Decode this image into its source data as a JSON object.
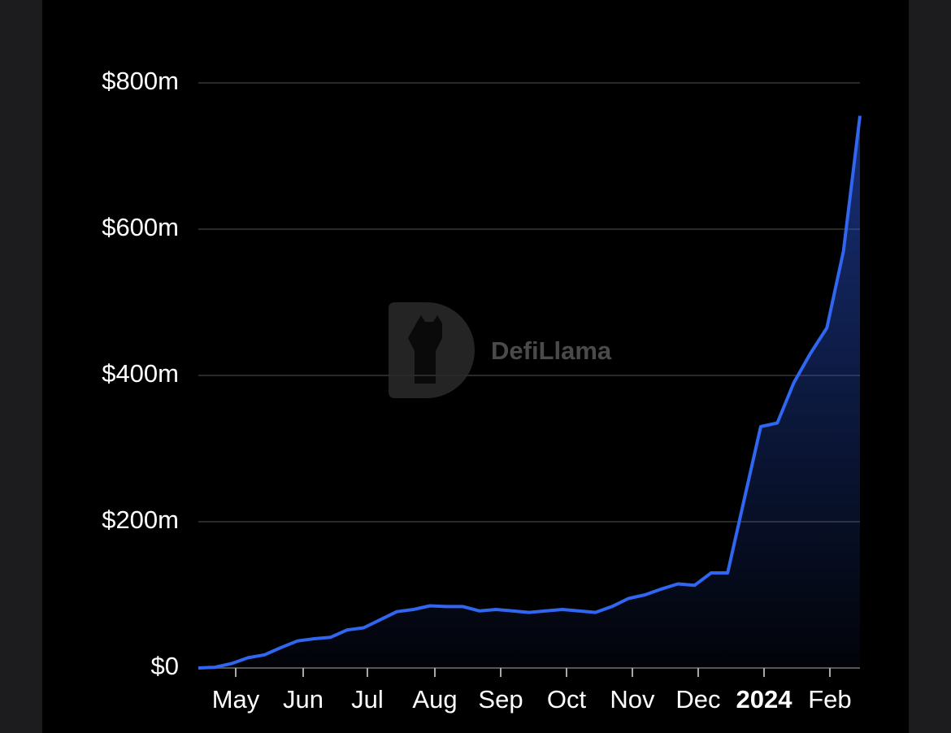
{
  "chart_data": {
    "type": "line",
    "watermark": "DefiLlama",
    "values": [
      0,
      1,
      6,
      14,
      18,
      28,
      37,
      40,
      42,
      52,
      55,
      66,
      77,
      80,
      85,
      84,
      84,
      78,
      80,
      78,
      76,
      78,
      80,
      78,
      76,
      84,
      95,
      100,
      108,
      115,
      113,
      130,
      130,
      230,
      330,
      335,
      390,
      430,
      465,
      570,
      755
    ],
    "color": "#3166f0",
    "xlim": [
      0,
      40
    ],
    "xticks": [
      {
        "value": 2.26,
        "label": "May"
      },
      {
        "value": 6.34,
        "label": "Jun"
      },
      {
        "value": 10.22,
        "label": "Jul"
      },
      {
        "value": 14.3,
        "label": "Aug"
      },
      {
        "value": 18.28,
        "label": "Sep"
      },
      {
        "value": 22.26,
        "label": "Oct"
      },
      {
        "value": 26.24,
        "label": "Nov"
      },
      {
        "value": 30.22,
        "label": "Dec"
      },
      {
        "value": 34.2,
        "label": "2024",
        "bold": true
      },
      {
        "value": 38.18,
        "label": "Feb"
      }
    ],
    "ylim": [
      0,
      800
    ],
    "yticks": [
      {
        "value": 0,
        "label": "$0"
      },
      {
        "value": 200,
        "label": "$200m"
      },
      {
        "value": 400,
        "label": "$400m"
      },
      {
        "value": 600,
        "label": "$600m"
      },
      {
        "value": 800,
        "label": "$800m"
      }
    ],
    "grid": true
  }
}
